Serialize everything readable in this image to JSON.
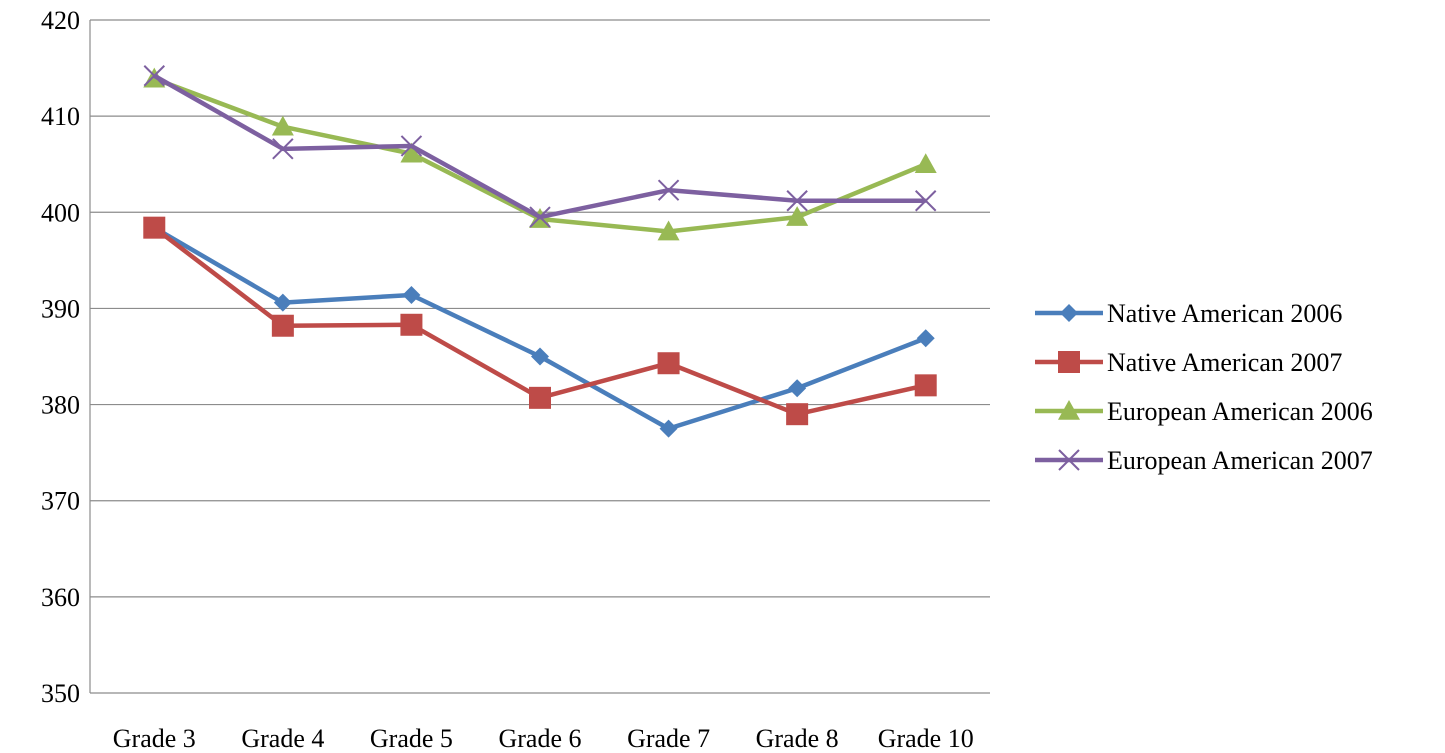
{
  "chart_data": {
    "type": "line",
    "title": "",
    "xlabel": "",
    "ylabel": "",
    "categories": [
      "Grade 3",
      "Grade 4",
      "Grade 5",
      "Grade 6",
      "Grade 7",
      "Grade 8",
      "Grade 10"
    ],
    "ylim": [
      350,
      420
    ],
    "yticks": [
      "350",
      "360",
      "370",
      "380",
      "390",
      "400",
      "410",
      "420"
    ],
    "grid": true,
    "legend_position": "right",
    "series": [
      {
        "name": "Native American 2006",
        "color": "#4a7ebb",
        "marker": "diamond",
        "values": [
          398.4,
          390.6,
          391.4,
          385.0,
          377.5,
          381.7,
          386.9
        ]
      },
      {
        "name": "Native American 2007",
        "color": "#be4b48",
        "marker": "square",
        "values": [
          398.4,
          388.2,
          388.3,
          380.7,
          384.3,
          379.0,
          382.0
        ]
      },
      {
        "name": "European American 2006",
        "color": "#98b954",
        "marker": "triangle",
        "values": [
          413.9,
          408.9,
          406.1,
          399.3,
          398.0,
          399.5,
          405.0
        ]
      },
      {
        "name": "European American 2007",
        "color": "#7d60a0",
        "marker": "x",
        "values": [
          414.2,
          406.6,
          406.9,
          399.5,
          402.3,
          401.2,
          401.2
        ]
      }
    ]
  }
}
